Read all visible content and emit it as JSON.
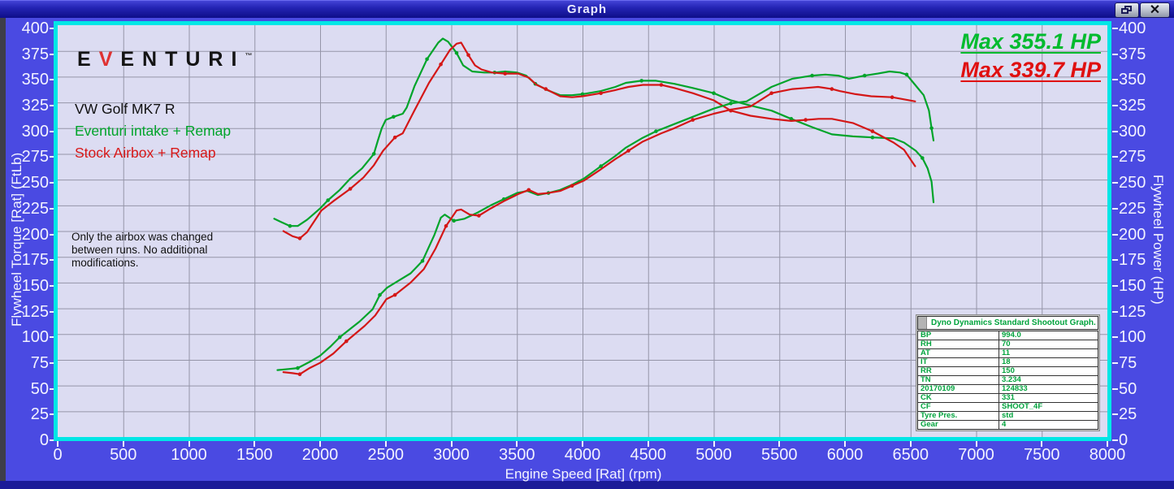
{
  "window": {
    "title": "Graph",
    "close_glyph": "✕"
  },
  "logo": {
    "pre": "E",
    "v": "V",
    "post": "ENTURI",
    "tm": "™"
  },
  "legend": {
    "vehicle": "VW Golf MK7 R",
    "run1": "Eventuri intake + Remap",
    "run2": "Stock Airbox + Remap"
  },
  "note": {
    "line1": "Only the airbox was changed",
    "line2": "between runs. No additional",
    "line3": "modifications."
  },
  "max_labels": {
    "green": "Max 355.1 HP",
    "red": "Max 339.7 HP"
  },
  "dyno_panel": {
    "header": "Dyno Dynamics Standard Shootout Graph.",
    "rows": [
      [
        "BP",
        "994.0"
      ],
      [
        "RH",
        "70"
      ],
      [
        "AT",
        "11"
      ],
      [
        "IT",
        "18"
      ],
      [
        "RR",
        "150"
      ],
      [
        "TN",
        "3.234"
      ],
      [
        "20170109",
        "124833"
      ],
      [
        "CK",
        "331"
      ],
      [
        "CF",
        "SHOOT_4F"
      ],
      [
        "Tyre Pres.",
        "std"
      ],
      [
        "Gear",
        "4"
      ]
    ]
  },
  "chart_data": {
    "type": "line",
    "title": "Dyno Dynamics Standard Shootout Graph.",
    "xlabel": "Engine Speed [Rat] (rpm)",
    "ylabel_left": "Flywheel Torque [Rat] (FtLb)",
    "ylabel_right": "Flywheel Power (HP)",
    "xlim": [
      0,
      8000
    ],
    "ylim": [
      0,
      400
    ],
    "x_ticks": [
      0,
      500,
      1000,
      1500,
      2000,
      2500,
      3000,
      3500,
      4000,
      4500,
      5000,
      5500,
      6000,
      6500,
      7000,
      7500,
      8000
    ],
    "y_ticks": [
      0,
      25,
      50,
      75,
      100,
      125,
      150,
      175,
      200,
      225,
      250,
      275,
      300,
      325,
      350,
      375,
      400
    ],
    "grid": true,
    "legend_position": "top-left",
    "colors": {
      "green": "#00a42a",
      "red": "#d41717",
      "grid": "#9595a8",
      "plot_bg": "#dcdcf2",
      "frame": "#00e6e6"
    },
    "max_power_green_hp": 355.1,
    "max_power_red_hp": 339.7,
    "series": [
      {
        "name": "Eventuri intake + Remap — Torque (FtLb)",
        "color": "#00a42a",
        "points": [
          [
            1650,
            212
          ],
          [
            1700,
            209
          ],
          [
            1770,
            205
          ],
          [
            1830,
            205
          ],
          [
            1900,
            211
          ],
          [
            2000,
            222
          ],
          [
            2060,
            230
          ],
          [
            2150,
            240
          ],
          [
            2230,
            251
          ],
          [
            2320,
            261
          ],
          [
            2410,
            275
          ],
          [
            2440,
            288
          ],
          [
            2470,
            300
          ],
          [
            2500,
            308
          ],
          [
            2560,
            311
          ],
          [
            2630,
            314
          ],
          [
            2660,
            320
          ],
          [
            2720,
            341
          ],
          [
            2815,
            367
          ],
          [
            2900,
            383
          ],
          [
            2935,
            387
          ],
          [
            2975,
            384
          ],
          [
            3040,
            373
          ],
          [
            3090,
            361
          ],
          [
            3160,
            355
          ],
          [
            3250,
            354
          ],
          [
            3330,
            354
          ],
          [
            3410,
            355
          ],
          [
            3500,
            354
          ],
          [
            3570,
            351
          ],
          [
            3640,
            343
          ],
          [
            3730,
            337
          ],
          [
            3830,
            332
          ],
          [
            3920,
            332
          ],
          [
            4000,
            333
          ],
          [
            4140,
            336
          ],
          [
            4250,
            340
          ],
          [
            4330,
            344
          ],
          [
            4450,
            346
          ],
          [
            4560,
            346
          ],
          [
            4700,
            343
          ],
          [
            4840,
            339
          ],
          [
            5000,
            334
          ],
          [
            5130,
            327
          ],
          [
            5280,
            322
          ],
          [
            5440,
            317
          ],
          [
            5590,
            309
          ],
          [
            5750,
            301
          ],
          [
            5900,
            294
          ],
          [
            6060,
            292
          ],
          [
            6210,
            291
          ],
          [
            6370,
            290
          ],
          [
            6450,
            286
          ],
          [
            6540,
            278
          ],
          [
            6590,
            271
          ],
          [
            6630,
            261
          ],
          [
            6660,
            248
          ],
          [
            6675,
            228
          ]
        ]
      },
      {
        "name": "Stock Airbox + Remap — Torque (FtLb)",
        "color": "#d41717",
        "points": [
          [
            1720,
            200
          ],
          [
            1790,
            195
          ],
          [
            1845,
            193
          ],
          [
            1900,
            199
          ],
          [
            2010,
            220
          ],
          [
            2100,
            229
          ],
          [
            2230,
            241
          ],
          [
            2330,
            252
          ],
          [
            2410,
            264
          ],
          [
            2480,
            278
          ],
          [
            2570,
            291
          ],
          [
            2630,
            295
          ],
          [
            2710,
            315
          ],
          [
            2830,
            344
          ],
          [
            2920,
            362
          ],
          [
            2990,
            376
          ],
          [
            3040,
            382
          ],
          [
            3075,
            383
          ],
          [
            3130,
            371
          ],
          [
            3180,
            361
          ],
          [
            3230,
            357
          ],
          [
            3310,
            354
          ],
          [
            3410,
            353
          ],
          [
            3510,
            353
          ],
          [
            3590,
            349
          ],
          [
            3650,
            342
          ],
          [
            3720,
            338
          ],
          [
            3830,
            331
          ],
          [
            3920,
            330
          ],
          [
            4000,
            331
          ],
          [
            4140,
            334
          ],
          [
            4250,
            337
          ],
          [
            4350,
            340
          ],
          [
            4460,
            342
          ],
          [
            4600,
            342
          ],
          [
            4700,
            339
          ],
          [
            4840,
            334
          ],
          [
            5000,
            327
          ],
          [
            5130,
            317
          ],
          [
            5280,
            312
          ],
          [
            5440,
            309
          ],
          [
            5590,
            307
          ],
          [
            5700,
            308
          ],
          [
            5800,
            309
          ],
          [
            5900,
            309
          ],
          [
            6060,
            305
          ],
          [
            6210,
            297
          ],
          [
            6370,
            286
          ],
          [
            6450,
            279
          ],
          [
            6535,
            263
          ]
        ]
      },
      {
        "name": "Eventuri intake + Remap — Power (HP)",
        "color": "#00a42a",
        "points": [
          [
            1675,
            65
          ],
          [
            1760,
            66
          ],
          [
            1830,
            67
          ],
          [
            1920,
            73
          ],
          [
            2000,
            79
          ],
          [
            2080,
            88
          ],
          [
            2150,
            97
          ],
          [
            2230,
            105
          ],
          [
            2300,
            112
          ],
          [
            2400,
            124
          ],
          [
            2455,
            138
          ],
          [
            2510,
            145
          ],
          [
            2600,
            152
          ],
          [
            2690,
            159
          ],
          [
            2780,
            171
          ],
          [
            2870,
            196
          ],
          [
            2920,
            213
          ],
          [
            2950,
            216
          ],
          [
            3020,
            210
          ],
          [
            3100,
            212
          ],
          [
            3200,
            218
          ],
          [
            3300,
            225
          ],
          [
            3400,
            231
          ],
          [
            3500,
            237
          ],
          [
            3580,
            239
          ],
          [
            3660,
            235
          ],
          [
            3740,
            237
          ],
          [
            3830,
            240
          ],
          [
            3920,
            245
          ],
          [
            4010,
            251
          ],
          [
            4140,
            263
          ],
          [
            4250,
            273
          ],
          [
            4330,
            281
          ],
          [
            4450,
            290
          ],
          [
            4560,
            297
          ],
          [
            4700,
            304
          ],
          [
            4840,
            311
          ],
          [
            5000,
            319
          ],
          [
            5130,
            324
          ],
          [
            5250,
            326
          ],
          [
            5440,
            340
          ],
          [
            5600,
            348
          ],
          [
            5750,
            351
          ],
          [
            5850,
            352
          ],
          [
            5950,
            351
          ],
          [
            6030,
            348
          ],
          [
            6150,
            351
          ],
          [
            6250,
            353
          ],
          [
            6340,
            355
          ],
          [
            6420,
            354
          ],
          [
            6470,
            352
          ],
          [
            6535,
            342
          ],
          [
            6600,
            332
          ],
          [
            6640,
            317
          ],
          [
            6660,
            300
          ],
          [
            6675,
            288
          ]
        ]
      },
      {
        "name": "Stock Airbox + Remap — Power (HP)",
        "color": "#d41717",
        "points": [
          [
            1720,
            63
          ],
          [
            1790,
            62
          ],
          [
            1845,
            61
          ],
          [
            1920,
            67
          ],
          [
            2000,
            72
          ],
          [
            2100,
            81
          ],
          [
            2200,
            93
          ],
          [
            2340,
            108
          ],
          [
            2420,
            118
          ],
          [
            2505,
            134
          ],
          [
            2570,
            138
          ],
          [
            2690,
            150
          ],
          [
            2790,
            163
          ],
          [
            2880,
            183
          ],
          [
            2960,
            205
          ],
          [
            3040,
            220
          ],
          [
            3075,
            221
          ],
          [
            3140,
            216
          ],
          [
            3210,
            215
          ],
          [
            3300,
            222
          ],
          [
            3400,
            229
          ],
          [
            3510,
            236
          ],
          [
            3590,
            240
          ],
          [
            3660,
            236
          ],
          [
            3740,
            237
          ],
          [
            3830,
            239
          ],
          [
            3920,
            244
          ],
          [
            4010,
            249
          ],
          [
            4140,
            260
          ],
          [
            4250,
            270
          ],
          [
            4350,
            278
          ],
          [
            4460,
            287
          ],
          [
            4600,
            295
          ],
          [
            4700,
            300
          ],
          [
            4840,
            308
          ],
          [
            5000,
            314
          ],
          [
            5130,
            318
          ],
          [
            5280,
            321
          ],
          [
            5440,
            334
          ],
          [
            5600,
            338
          ],
          [
            5700,
            339
          ],
          [
            5795,
            340
          ],
          [
            5900,
            338
          ],
          [
            5960,
            336
          ],
          [
            6080,
            333
          ],
          [
            6200,
            331
          ],
          [
            6360,
            330
          ],
          [
            6450,
            328
          ],
          [
            6535,
            326
          ]
        ]
      }
    ]
  }
}
